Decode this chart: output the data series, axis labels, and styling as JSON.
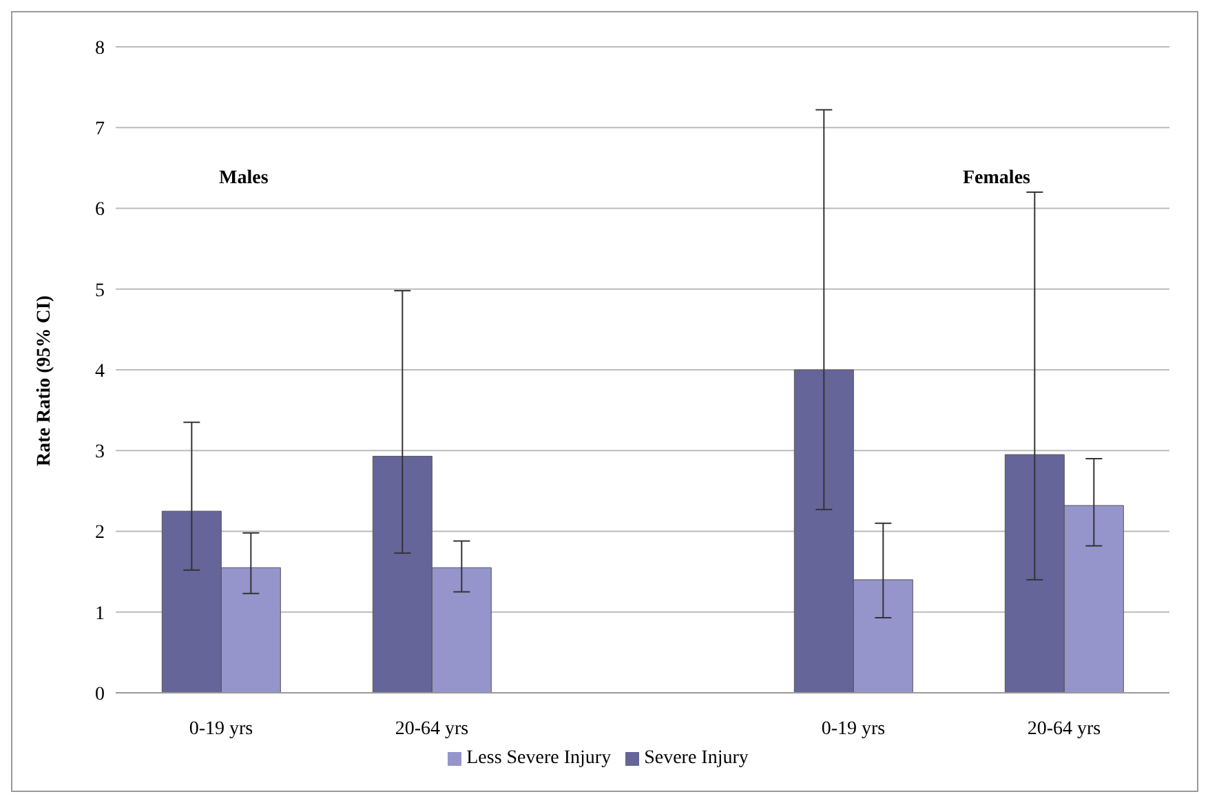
{
  "chart_data": {
    "type": "bar",
    "ylabel": "Rate Ratio (95% CI)",
    "categories": [
      "0-19 yrs",
      "20-64 yrs",
      null,
      "0-19 yrs",
      "20-64 yrs"
    ],
    "series": [
      {
        "name": "Severe Injury",
        "color": "#65659a",
        "values": [
          2.25,
          2.93,
          null,
          4.0,
          2.95
        ],
        "errors": [
          [
            1.52,
            3.35
          ],
          [
            1.73,
            4.98
          ],
          null,
          [
            2.27,
            7.22
          ],
          [
            1.4,
            6.2
          ]
        ]
      },
      {
        "name": "Less Severe Injury",
        "color": "#9595cc",
        "values": [
          1.55,
          1.55,
          null,
          1.4,
          2.32
        ],
        "errors": [
          [
            1.23,
            1.98
          ],
          [
            1.25,
            1.88
          ],
          null,
          [
            0.93,
            2.1
          ],
          [
            1.82,
            2.9
          ]
        ]
      }
    ],
    "ylim": [
      0,
      8
    ],
    "yticks": [
      0,
      1,
      2,
      3,
      4,
      5,
      6,
      7,
      8
    ],
    "grid": "y",
    "legend": "bottom",
    "annotations": [
      "Males",
      "Females"
    ]
  }
}
